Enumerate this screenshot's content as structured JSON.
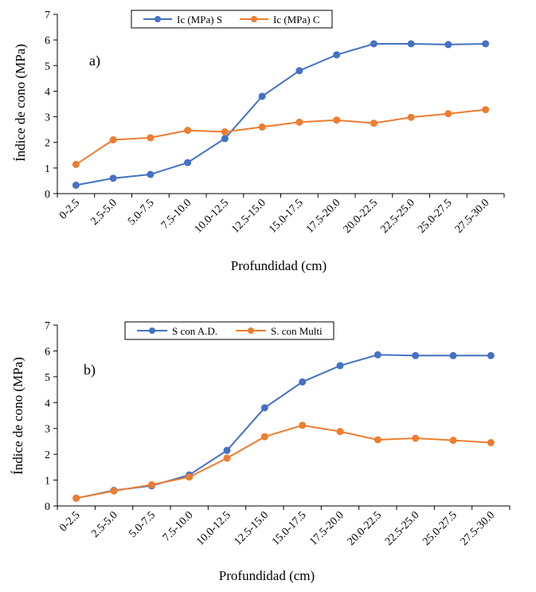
{
  "chart_data": [
    {
      "type": "line",
      "panel_label": "a)",
      "xlabel": "Profundidad (cm)",
      "ylabel": "Índice de cono (MPa)",
      "ylim": [
        0,
        7
      ],
      "yticks": [
        0,
        1,
        2,
        3,
        4,
        5,
        6,
        7
      ],
      "grid": false,
      "legend_position": "top",
      "categories": [
        "0-2.5",
        "2.5-5.0",
        "5.0-7.5",
        "7.5-10.0",
        "10.0-12.5",
        "12.5-15.0",
        "15.0-17.5",
        "17.5-20.0",
        "20.0-22.5",
        "22.5-25.0",
        "25.0-27.5",
        "27.5-30.0"
      ],
      "series": [
        {
          "name": "Ic (MPa) S",
          "color": "#4472C4",
          "values": [
            0.33,
            0.6,
            0.75,
            1.21,
            2.15,
            3.8,
            4.8,
            5.42,
            5.85,
            5.85,
            5.82,
            5.85
          ]
        },
        {
          "name": "Ic (MPa) C",
          "color": "#ED7D31",
          "values": [
            1.14,
            2.1,
            2.18,
            2.47,
            2.41,
            2.6,
            2.79,
            2.87,
            2.75,
            2.98,
            3.12,
            3.28
          ]
        }
      ]
    },
    {
      "type": "line",
      "panel_label": "b)",
      "xlabel": "Profundidad (cm)",
      "ylabel": "Índice de cono (MPa)",
      "ylim": [
        0,
        7
      ],
      "yticks": [
        0,
        1,
        2,
        3,
        4,
        5,
        6,
        7
      ],
      "grid": false,
      "legend_position": "top",
      "categories": [
        "0-2.5",
        "2.5-5.0",
        "5.0-7.5",
        "7.5-10.0",
        "10.0-12.5",
        "12.5-15.0",
        "15.0-17.5",
        "17.5-20.0",
        "20.0-22.5",
        "22.5-25.0",
        "25.0-27.5",
        "27.5-30.0"
      ],
      "series": [
        {
          "name": "S con A.D.",
          "color": "#4472C4",
          "values": [
            0.3,
            0.6,
            0.78,
            1.2,
            2.15,
            3.8,
            4.8,
            5.43,
            5.85,
            5.82,
            5.82,
            5.82
          ]
        },
        {
          "name": "S. con Multi",
          "color": "#ED7D31",
          "values": [
            0.3,
            0.58,
            0.82,
            1.12,
            1.85,
            2.68,
            3.12,
            2.88,
            2.56,
            2.62,
            2.54,
            2.45
          ]
        }
      ]
    }
  ]
}
